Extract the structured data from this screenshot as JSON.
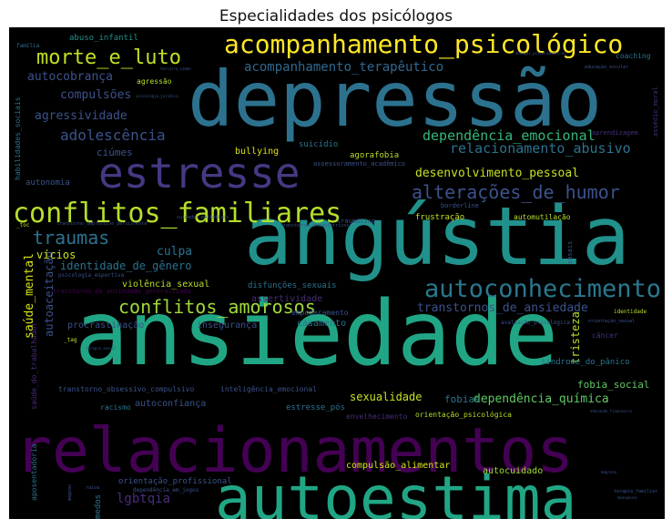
{
  "chart_data": {
    "type": "wordcloud",
    "title": "Especialidades dos psicólogos",
    "background": "#000000",
    "palette": [
      "#440154",
      "#472d7b",
      "#3b528b",
      "#2c728e",
      "#21918c",
      "#28ae80",
      "#5ec962",
      "#addc30",
      "#fde725"
    ],
    "words": [
      {
        "text": "depressão",
        "weight": 100,
        "color": "#2c728e",
        "rotate": 0
      },
      {
        "text": "ansiedade",
        "weight": 98,
        "color": "#21a685",
        "rotate": 0
      },
      {
        "text": "angústia",
        "weight": 90,
        "color": "#21918c",
        "rotate": 0
      },
      {
        "text": "relacionamentos",
        "weight": 82,
        "color": "#440154",
        "rotate": 0
      },
      {
        "text": "autoestima",
        "weight": 76,
        "color": "#21a685",
        "rotate": 0
      },
      {
        "text": "estresse",
        "weight": 58,
        "color": "#443983",
        "rotate": 0
      },
      {
        "text": "conflitos_familiares",
        "weight": 40,
        "color": "#b5de2b",
        "rotate": 0
      },
      {
        "text": "acompanhamento_psicológico",
        "weight": 38,
        "color": "#fde725",
        "rotate": 0
      },
      {
        "text": "autoconhecimento",
        "weight": 34,
        "color": "#2a788e",
        "rotate": 0
      },
      {
        "text": "morte_e_luto",
        "weight": 30,
        "color": "#c2df23",
        "rotate": 0
      },
      {
        "text": "alterações_de_humor",
        "weight": 26,
        "color": "#3b528b",
        "rotate": 0
      },
      {
        "text": "traumas",
        "weight": 26,
        "color": "#2c728e",
        "rotate": 0
      },
      {
        "text": "conflitos_amorosos",
        "weight": 24,
        "color": "#a0da39",
        "rotate": 0
      },
      {
        "text": "acompanhamento_terapêutico",
        "weight": 18,
        "color": "#31688e",
        "rotate": 0
      },
      {
        "text": "adolescência",
        "weight": 18,
        "color": "#3b528b",
        "rotate": 0
      },
      {
        "text": "dependência_emocional",
        "weight": 16,
        "color": "#35b779",
        "rotate": 0
      },
      {
        "text": "relacionamento_abusivo",
        "weight": 16,
        "color": "#2c728e",
        "rotate": 0
      },
      {
        "text": "transtornos_de_ansiedade",
        "weight": 16,
        "color": "#3b528b",
        "rotate": 0
      },
      {
        "text": "identidade_de_gênero",
        "weight": 14,
        "color": "#2c728e",
        "rotate": 0
      },
      {
        "text": "desenvolvimento_pessoal",
        "weight": 14,
        "color": "#c8e020",
        "rotate": 0
      },
      {
        "text": "dependência_química",
        "weight": 14,
        "color": "#5ec962",
        "rotate": 0
      },
      {
        "text": "autocobrança",
        "weight": 14,
        "color": "#3b528b",
        "rotate": 0
      },
      {
        "text": "compulsões",
        "weight": 14,
        "color": "#3b528b",
        "rotate": 0
      },
      {
        "text": "agressividade",
        "weight": 14,
        "color": "#3b528b",
        "rotate": 0
      },
      {
        "text": "saúde_mental",
        "weight": 14,
        "color": "#d8e219",
        "rotate": -90
      },
      {
        "text": "autoaceitação",
        "weight": 14,
        "color": "#3b528b",
        "rotate": -90
      },
      {
        "text": "culpa",
        "weight": 14,
        "color": "#2c728e",
        "rotate": 0
      },
      {
        "text": "vícios",
        "weight": 14,
        "color": "#c8e020",
        "rotate": 0
      },
      {
        "text": "lgbtqia",
        "weight": 14,
        "color": "#472d7b",
        "rotate": 0
      },
      {
        "text": "tristeza",
        "weight": 14,
        "color": "#b5de2b",
        "rotate": -90
      },
      {
        "text": "fobia_social",
        "weight": 12,
        "color": "#5ec962",
        "rotate": 0
      },
      {
        "text": "sexualidade",
        "weight": 12,
        "color": "#c8e020",
        "rotate": 0
      },
      {
        "text": "fobias",
        "weight": 12,
        "color": "#2c728e",
        "rotate": 0
      },
      {
        "text": "ciúmes",
        "weight": 12,
        "color": "#3b528b",
        "rotate": 0
      },
      {
        "text": "bullying",
        "weight": 10,
        "color": "#d8e219",
        "rotate": 0
      },
      {
        "text": "casamento",
        "weight": 11,
        "color": "#2c728e",
        "rotate": 0
      },
      {
        "text": "assertividade",
        "weight": 11,
        "color": "#472d7b",
        "rotate": 0
      },
      {
        "text": "violência_sexual",
        "weight": 11,
        "color": "#b5de2b",
        "rotate": 0
      },
      {
        "text": "autocuidado",
        "weight": 11,
        "color": "#a0da39",
        "rotate": 0
      },
      {
        "text": "compulsão_alimentar",
        "weight": 10,
        "color": "#d8e219",
        "rotate": 0
      },
      {
        "text": "autoconfiança",
        "weight": 10,
        "color": "#3b528b",
        "rotate": 0
      },
      {
        "text": "insegurança",
        "weight": 10,
        "color": "#3b528b",
        "rotate": 0
      },
      {
        "text": "procrastinação",
        "weight": 10,
        "color": "#3b528b",
        "rotate": 0
      },
      {
        "text": "frustração",
        "weight": 10,
        "color": "#c8e020",
        "rotate": 0
      },
      {
        "text": "agorafobia",
        "weight": 10,
        "color": "#b5de2b",
        "rotate": 0
      },
      {
        "text": "suicídio",
        "weight": 10,
        "color": "#2c728e",
        "rotate": 0
      },
      {
        "text": "orientação_profissional",
        "weight": 10,
        "color": "#3b528b",
        "rotate": 0
      },
      {
        "text": "medos",
        "weight": 10,
        "color": "#2c728e",
        "rotate": -90
      },
      {
        "text": "autonomia",
        "weight": 9,
        "color": "#3b528b",
        "rotate": 0
      },
      {
        "text": "disfunções_sexuais",
        "weight": 9,
        "color": "#2c728e",
        "rotate": 0
      },
      {
        "text": "empoderamento",
        "weight": 8,
        "color": "#3b528b",
        "rotate": 0
      },
      {
        "text": "estresse_pós",
        "weight": 9,
        "color": "#2c728e",
        "rotate": 0
      },
      {
        "text": "síndrome_do_pânico",
        "weight": 9,
        "color": "#2c728e",
        "rotate": 0
      },
      {
        "text": "câncer",
        "weight": 9,
        "color": "#472d7b",
        "rotate": 0
      },
      {
        "text": "automutilação",
        "weight": 9,
        "color": "#b5de2b",
        "rotate": 0
      },
      {
        "text": "abuso_infantil",
        "weight": 9,
        "color": "#21918c",
        "rotate": 0
      },
      {
        "text": "coaching",
        "weight": 8,
        "color": "#2c728e",
        "rotate": 0
      },
      {
        "text": "agressão",
        "weight": 8,
        "color": "#b5de2b",
        "rotate": 0
      },
      {
        "text": "orientação_psicológica",
        "weight": 8,
        "color": "#b5de2b",
        "rotate": 0
      },
      {
        "text": "inteligência_emocional",
        "weight": 8,
        "color": "#3b528b",
        "rotate": 0
      },
      {
        "text": "transtorno_obsessivo_compulsivo",
        "weight": 8,
        "color": "#3b528b",
        "rotate": 0
      },
      {
        "text": "racismo",
        "weight": 8,
        "color": "#2c728e",
        "rotate": 0
      },
      {
        "text": "envelhecimento",
        "weight": 8,
        "color": "#472d7b",
        "rotate": 0
      },
      {
        "text": "borderline",
        "weight": 7,
        "color": "#3b528b",
        "rotate": 0
      },
      {
        "text": "traumático",
        "weight": 7,
        "color": "#3b528b",
        "rotate": 0
      },
      {
        "text": "assessoramento_acadêmico",
        "weight": 7,
        "color": "#3b528b",
        "rotate": 0
      },
      {
        "text": "aprendizagem",
        "weight": 7,
        "color": "#472d7b",
        "rotate": 0
      },
      {
        "text": "habilidades_sociais",
        "weight": 8,
        "color": "#2c728e",
        "rotate": -90
      },
      {
        "text": "saúde_do_trabalhador",
        "weight": 8,
        "color": "#472d7b",
        "rotate": -90
      },
      {
        "text": "aposentadoria",
        "weight": 8,
        "color": "#2c728e",
        "rotate": -90
      },
      {
        "text": "assédio_moral",
        "weight": 7,
        "color": "#472d7b",
        "rotate": -90
      },
      {
        "text": "casais",
        "weight": 7,
        "color": "#3b528b",
        "rotate": -90
      },
      {
        "text": "transtorno_de_ansiedade_generalizada",
        "weight": 7,
        "color": "#440154",
        "rotate": 0
      },
      {
        "text": "identidade",
        "weight": 6,
        "color": "#b5de2b",
        "rotate": 0
      },
      {
        "text": "avaliação_psicológica",
        "weight": 6,
        "color": "#3b528b",
        "rotate": 0
      },
      {
        "text": "dependência_em_jogos",
        "weight": 6,
        "color": "#3b528b",
        "rotate": 0
      },
      {
        "text": "psicologia_esportiva",
        "weight": 6,
        "color": "#3b528b",
        "rotate": 0
      },
      {
        "text": "_tag",
        "weight": 6,
        "color": "#c8e020",
        "rotate": 0
      },
      {
        "text": "_toc",
        "weight": 6,
        "color": "#b5de2b",
        "rotate": 0
      },
      {
        "text": "orientação_sexual",
        "weight": 5,
        "color": "#3b528b",
        "rotate": 0
      },
      {
        "text": "educação_escolar",
        "weight": 5,
        "color": "#3b528b",
        "rotate": 0
      },
      {
        "text": "família",
        "weight": 6,
        "color": "#2c728e",
        "rotate": 0
      },
      {
        "text": "raiva",
        "weight": 5,
        "color": "#3b528b",
        "rotate": 0
      },
      {
        "text": "mágoas",
        "weight": 5,
        "color": "#3b528b",
        "rotate": -90
      },
      {
        "text": "transtorno_depressivo_persistente",
        "weight": 5,
        "color": "#3b528b",
        "rotate": 0
      },
      {
        "text": "transtornos_psiquiátricos",
        "weight": 5,
        "color": "#3b528b",
        "rotate": 0
      },
      {
        "text": "cuidados_paliativos",
        "weight": 5,
        "color": "#3b528b",
        "rotate": 0
      },
      {
        "text": "terapia_familiar",
        "weight": 5,
        "color": "#3b528b",
        "rotate": 0
      },
      {
        "text": "terapia_sexual",
        "weight": 4,
        "color": "#3b528b",
        "rotate": 0
      },
      {
        "text": "terceira_idade",
        "weight": 4,
        "color": "#3b528b",
        "rotate": 0
      },
      {
        "text": "psicologia_jurídica",
        "weight": 4,
        "color": "#3b528b",
        "rotate": 0
      },
      {
        "text": "educação_financeira",
        "weight": 4,
        "color": "#3b528b",
        "rotate": 0
      },
      {
        "text": "magreza",
        "weight": 4,
        "color": "#3b528b",
        "rotate": 0
      },
      {
        "text": "menopausa",
        "weight": 4,
        "color": "#3b528b",
        "rotate": 0
      },
      {
        "text": "doenças_psicossomáticas",
        "weight": 4,
        "color": "#3b528b",
        "rotate": 0
      }
    ]
  }
}
